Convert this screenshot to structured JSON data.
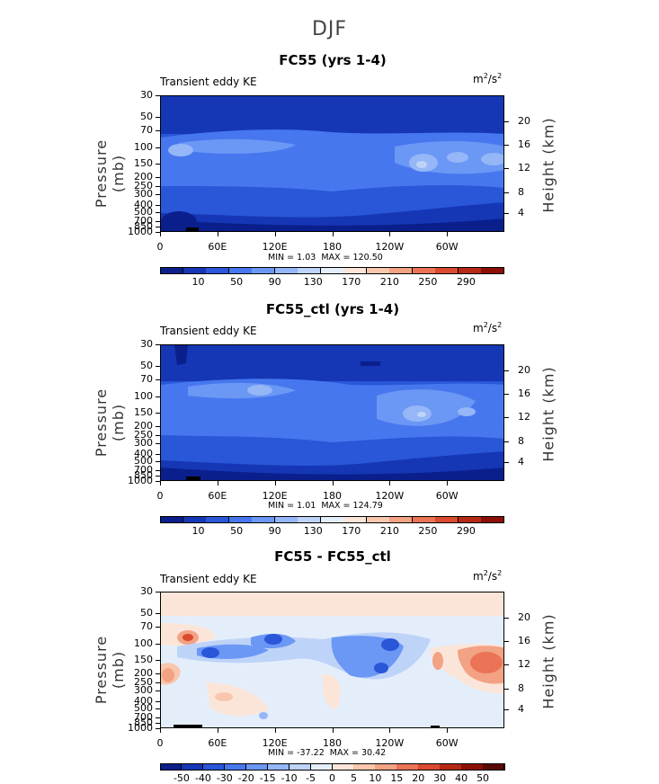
{
  "season_title": "DJF",
  "chart_data": [
    {
      "type": "heatmap",
      "title": "FC55 (yrs 1-4)",
      "left_label": "Transient eddy KE",
      "units_base": "m",
      "units_exp1": "2",
      "units_mid": "/s",
      "units_exp2": "2",
      "ylabel": "Pressure (mb)",
      "ylabel_right": "Height (km)",
      "xticks": [
        "0",
        "60E",
        "120E",
        "180",
        "120W",
        "60W"
      ],
      "yticks": [
        "30",
        "50",
        "70",
        "100",
        "150",
        "200",
        "250",
        "300",
        "400",
        "500",
        "700",
        "850",
        "1000"
      ],
      "height_ticks": [
        "20",
        "16",
        "12",
        "8",
        "4"
      ],
      "min_label": "MIN =",
      "min_value": "1.03",
      "max_label": "MAX =",
      "max_value": "120.50",
      "colorbar_ticks": [
        "10",
        "50",
        "90",
        "130",
        "170",
        "210",
        "250",
        "290"
      ],
      "colors": [
        "#0a1f8c",
        "#1537b5",
        "#2a56d8",
        "#4677ee",
        "#6b97f5",
        "#95b6f7",
        "#bed3f8",
        "#e4eefb",
        "#fbe5d8",
        "#f8c7ad",
        "#f3a284",
        "#eb7456",
        "#d94a2e",
        "#b62a15",
        "#8c1007"
      ],
      "zlim": [
        0,
        300
      ]
    },
    {
      "type": "heatmap",
      "title": "FC55_ctl (yrs 1-4)",
      "left_label": "Transient eddy KE",
      "units_base": "m",
      "units_exp1": "2",
      "units_mid": "/s",
      "units_exp2": "2",
      "ylabel": "Pressure (mb)",
      "ylabel_right": "Height (km)",
      "xticks": [
        "0",
        "60E",
        "120E",
        "180",
        "120W",
        "60W"
      ],
      "yticks": [
        "30",
        "50",
        "70",
        "100",
        "150",
        "200",
        "250",
        "300",
        "400",
        "500",
        "700",
        "850",
        "1000"
      ],
      "height_ticks": [
        "20",
        "16",
        "12",
        "8",
        "4"
      ],
      "min_label": "MIN =",
      "min_value": "1.01",
      "max_label": "MAX =",
      "max_value": "124.79",
      "colorbar_ticks": [
        "10",
        "50",
        "90",
        "130",
        "170",
        "210",
        "250",
        "290"
      ],
      "colors": [
        "#0a1f8c",
        "#1537b5",
        "#2a56d8",
        "#4677ee",
        "#6b97f5",
        "#95b6f7",
        "#bed3f8",
        "#e4eefb",
        "#fbe5d8",
        "#f8c7ad",
        "#f3a284",
        "#eb7456",
        "#d94a2e",
        "#b62a15",
        "#8c1007"
      ],
      "zlim": [
        0,
        300
      ]
    },
    {
      "type": "heatmap",
      "title": "FC55 - FC55_ctl",
      "left_label": "Transient eddy KE",
      "units_base": "m",
      "units_exp1": "2",
      "units_mid": "/s",
      "units_exp2": "2",
      "ylabel": "Pressure (mb)",
      "ylabel_right": "Height (km)",
      "xticks": [
        "0",
        "60E",
        "120E",
        "180",
        "120W",
        "60W"
      ],
      "yticks": [
        "30",
        "50",
        "70",
        "100",
        "150",
        "200",
        "250",
        "300",
        "400",
        "500",
        "700",
        "850",
        "1000"
      ],
      "height_ticks": [
        "20",
        "16",
        "12",
        "8",
        "4"
      ],
      "min_label": "MIN =",
      "min_value": "-37.22",
      "max_label": "MAX =",
      "max_value": "30.42",
      "colorbar_ticks": [
        "-50",
        "-40",
        "-30",
        "-20",
        "-15",
        "-10",
        "-5",
        "0",
        "5",
        "10",
        "15",
        "20",
        "30",
        "40",
        "50"
      ],
      "colors": [
        "#0a1f8c",
        "#1537b5",
        "#2a56d8",
        "#4677ee",
        "#6b97f5",
        "#95b6f7",
        "#bed3f8",
        "#e4eefb",
        "#fbe5d8",
        "#f8c7ad",
        "#f3a284",
        "#eb7456",
        "#d94a2e",
        "#b62a15",
        "#8c1007",
        "#5a0a04"
      ],
      "zlim": [
        -50,
        50
      ]
    }
  ]
}
